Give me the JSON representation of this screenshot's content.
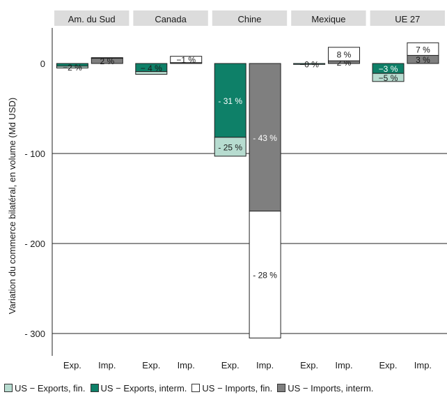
{
  "chart_data": {
    "type": "bar",
    "ylabel": "Variation du commerce bilatéral, en volume (Md USD)",
    "ylim": [
      -310,
      40
    ],
    "yticks": [
      0,
      -100,
      -200,
      -300
    ],
    "ytick_labels": [
      "0",
      "- 100",
      "- 200",
      "- 300"
    ],
    "grid": true,
    "legend_position": "bottom",
    "panels": [
      "Am. du Sud",
      "Canada",
      "Chine",
      "Mexique",
      "UE 27"
    ],
    "bar_labels": [
      "Exp.",
      "Imp."
    ],
    "series": [
      {
        "name": "US − Exports, fin.",
        "color": "#b7dcd0"
      },
      {
        "name": "US − Exports, interm.",
        "color": "#0e8068"
      },
      {
        "name": "US − Imports, fin.",
        "color": "#ffffff"
      },
      {
        "name": "US − Imports, interm.",
        "color": "#7f7f7f"
      }
    ],
    "bars": [
      {
        "panel": "Am. du Sud",
        "bar": "Exp.",
        "segments": [
          {
            "series": "US − Exports, interm.",
            "value": -3,
            "label": ""
          },
          {
            "series": "US − Exports, fin.",
            "value": -2,
            "label": "−2 %"
          }
        ]
      },
      {
        "panel": "Am. du Sud",
        "bar": "Imp.",
        "segments": [
          {
            "series": "US − Imports, interm.",
            "value": 6,
            "label": "2 %"
          },
          {
            "series": "US − Imports, fin.",
            "value": 0.5,
            "label": ""
          }
        ]
      },
      {
        "panel": "Canada",
        "bar": "Exp.",
        "segments": [
          {
            "series": "US − Exports, interm.",
            "value": -9,
            "label": "− 4 %"
          },
          {
            "series": "US − Exports, fin.",
            "value": -3,
            "label": ""
          }
        ]
      },
      {
        "panel": "Canada",
        "bar": "Imp.",
        "segments": [
          {
            "series": "US − Imports, interm.",
            "value": 1,
            "label": ""
          },
          {
            "series": "US − Imports, fin.",
            "value": 7,
            "label": "−1 %"
          }
        ]
      },
      {
        "panel": "Chine",
        "bar": "Exp.",
        "segments": [
          {
            "series": "US − Exports, interm.",
            "value": -82,
            "label": "- 31 %"
          },
          {
            "series": "US − Exports, fin.",
            "value": -21,
            "label": "- 25 %"
          }
        ]
      },
      {
        "panel": "Chine",
        "bar": "Imp.",
        "segments": [
          {
            "series": "US − Imports, interm.",
            "value": -164,
            "label": "- 43 %"
          },
          {
            "series": "US − Imports, fin.",
            "value": -141,
            "label": "- 28 %"
          }
        ]
      },
      {
        "panel": "Mexique",
        "bar": "Exp.",
        "segments": [
          {
            "series": "US − Exports, interm.",
            "value": -1,
            "label": "−0 %"
          },
          {
            "series": "US − Exports, fin.",
            "value": 0,
            "label": ""
          }
        ]
      },
      {
        "panel": "Mexique",
        "bar": "Imp.",
        "segments": [
          {
            "series": "US − Imports, interm.",
            "value": 3,
            "label": "2 %"
          },
          {
            "series": "US − Imports, fin.",
            "value": 15,
            "label": "8 %"
          }
        ]
      },
      {
        "panel": "UE 27",
        "bar": "Exp.",
        "segments": [
          {
            "series": "US − Exports, interm.",
            "value": -11,
            "label": "−3 %"
          },
          {
            "series": "US − Exports, fin.",
            "value": -9,
            "label": "−5 %"
          }
        ]
      },
      {
        "panel": "UE 27",
        "bar": "Imp.",
        "segments": [
          {
            "series": "US − Imports, interm.",
            "value": 9,
            "label": "3 %"
          },
          {
            "series": "US − Imports, fin.",
            "value": 14,
            "label": "7 %"
          }
        ]
      }
    ]
  }
}
